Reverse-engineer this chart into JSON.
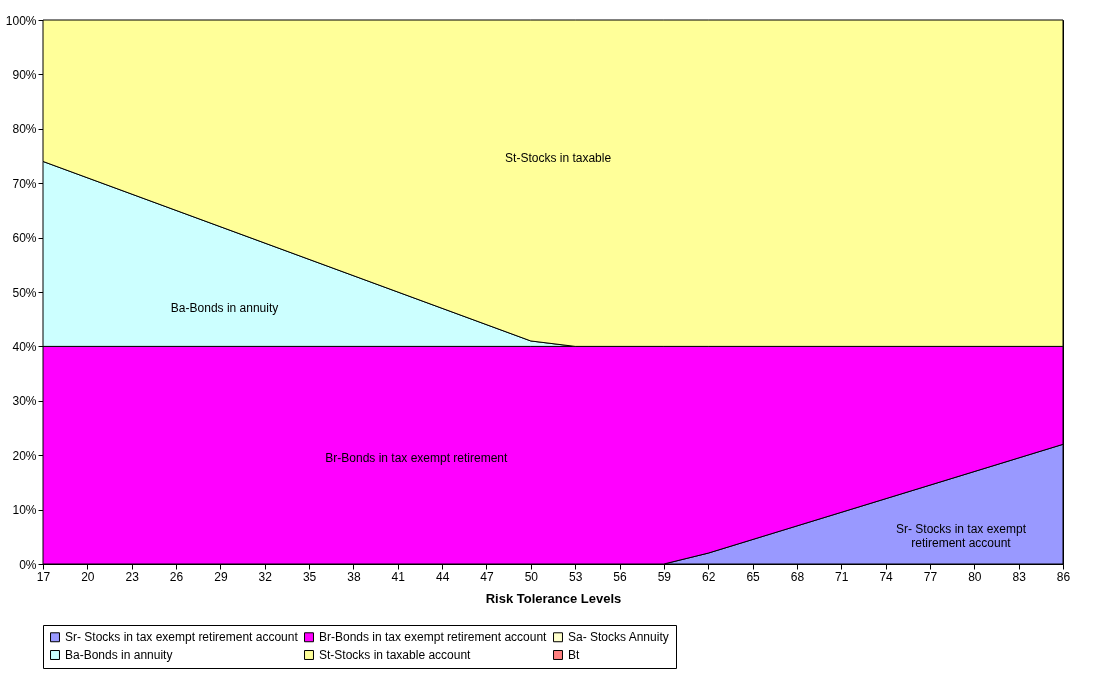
{
  "chart_data": {
    "type": "area",
    "stacked": true,
    "xlabel": "Risk Tolerance Levels",
    "x": [
      17,
      50,
      53,
      59,
      62,
      86
    ],
    "xlim": [
      17,
      86
    ],
    "xticks": [
      17,
      20,
      23,
      26,
      29,
      32,
      35,
      38,
      41,
      44,
      47,
      50,
      53,
      56,
      59,
      62,
      65,
      68,
      71,
      74,
      77,
      80,
      83,
      86
    ],
    "ylim": [
      0,
      100
    ],
    "yticks": [
      {
        "value": 0,
        "label": "0%"
      },
      {
        "value": 10,
        "label": "10%"
      },
      {
        "value": 20,
        "label": "20%"
      },
      {
        "value": 30,
        "label": "30%"
      },
      {
        "value": 40,
        "label": "40%"
      },
      {
        "value": 50,
        "label": "50%"
      },
      {
        "value": 60,
        "label": "60%"
      },
      {
        "value": 70,
        "label": "70%"
      },
      {
        "value": 80,
        "label": "80%"
      },
      {
        "value": 90,
        "label": "90%"
      },
      {
        "value": 100,
        "label": "100%"
      }
    ],
    "series": [
      {
        "name": "Sr- Stocks in tax exempt retirement account",
        "color": "#9999ff",
        "values": [
          0,
          0,
          0,
          0,
          2,
          22
        ]
      },
      {
        "name": "Br-Bonds in tax exempt retirement account",
        "color": "#ff00ff",
        "values": [
          40,
          40,
          40,
          40,
          38,
          18
        ]
      },
      {
        "name": "Sa- Stocks Annuity",
        "color": "#ffffcc",
        "values": [
          null,
          null,
          null,
          null,
          null,
          null
        ]
      },
      {
        "name": "Ba-Bonds in annuity",
        "color": "#ccffff",
        "values": [
          34,
          1,
          0,
          0,
          0,
          0
        ]
      },
      {
        "name": "St-Stocks in taxable account",
        "color": "#ffff99",
        "values": [
          26,
          59,
          60,
          60,
          60,
          60
        ]
      },
      {
        "name": "Bt",
        "color": "#ff8080",
        "values": [
          null,
          null,
          null,
          null,
          null,
          null
        ]
      }
    ],
    "annotations": [
      "St-Stocks in taxable",
      "Ba-Bonds in annuity",
      "Br-Bonds in tax exempt retirement",
      "Sr- Stocks in tax exempt\nretirement account"
    ],
    "legend": "bottom",
    "grid": false
  }
}
